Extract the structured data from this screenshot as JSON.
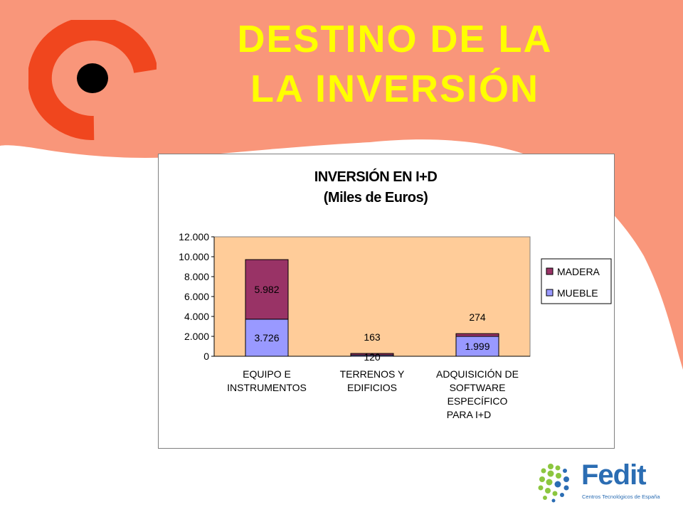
{
  "slide": {
    "title_line_1": "DESTINO DE LA",
    "title_line_2": "LA INVERSIÓN",
    "colors": {
      "wave": "#f9967a",
      "title": "#ffff00",
      "logo_ring": "#f0461e",
      "logo_dot": "#000000"
    }
  },
  "chart_data": {
    "type": "bar",
    "stacked": true,
    "title": "INVERSIÓN EN I+D",
    "subtitle": "(Miles de Euros)",
    "categories": [
      [
        "EQUIPO E",
        "INSTRUMENTOS"
      ],
      [
        "TERRENOS Y",
        "EDIFICIOS"
      ],
      [
        "ADQUISICIÓN DE",
        "SOFTWARE",
        "ESPECÍFICO",
        "PARA I+D"
      ]
    ],
    "series": [
      {
        "name": "MUEBLE",
        "color": "#9999ff",
        "values": [
          3726,
          120,
          1999
        ],
        "labels": [
          "3.726",
          "120",
          "1.999"
        ]
      },
      {
        "name": "MADERA",
        "color": "#993366",
        "values": [
          5982,
          163,
          274
        ],
        "labels": [
          "5.982",
          "163",
          "274"
        ]
      }
    ],
    "ylim": [
      0,
      12000
    ],
    "yticks": [
      0,
      2000,
      4000,
      6000,
      8000,
      10000,
      12000
    ],
    "ytick_labels": [
      "0",
      "2.000",
      "4.000",
      "6.000",
      "8.000",
      "10.000",
      "12.000"
    ],
    "plot_background": "#ffcc99",
    "grid": false,
    "legend_position": "right",
    "legend_order": [
      "MADERA",
      "MUEBLE"
    ]
  },
  "footer_logo": {
    "word": "Fedit",
    "subtitle": "Centros Tecnológicos de España",
    "colors": {
      "text": "#2b6db3",
      "dots_green": "#8cc63f",
      "dots_blue": "#2b6db3"
    }
  }
}
